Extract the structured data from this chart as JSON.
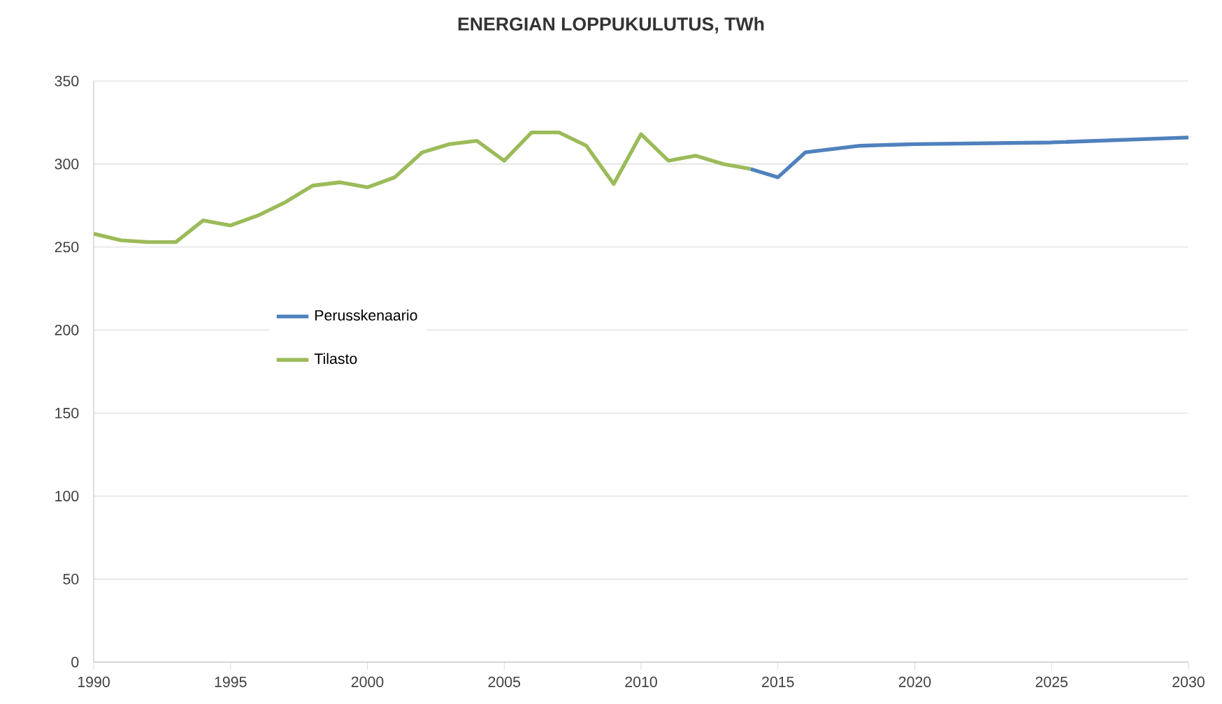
{
  "chart_data": {
    "type": "line",
    "title": "ENERGIAN LOPPUKULUTUS, TWh",
    "series": [
      {
        "name": "Perusskenaario",
        "color": "#4f81bd",
        "x": [
          2014,
          2015,
          2016,
          2018,
          2020,
          2025,
          2030
        ],
        "values": [
          297,
          292,
          307,
          311,
          312,
          313,
          316
        ]
      },
      {
        "name": "Tilasto",
        "color": "#9bbb59",
        "x": [
          1990,
          1991,
          1992,
          1993,
          1994,
          1995,
          1996,
          1997,
          1998,
          1999,
          2000,
          2001,
          2002,
          2003,
          2004,
          2005,
          2006,
          2007,
          2008,
          2009,
          2010,
          2011,
          2012,
          2013,
          2014
        ],
        "values": [
          258,
          254,
          253,
          253,
          266,
          263,
          269,
          277,
          287,
          289,
          286,
          292,
          307,
          312,
          314,
          302,
          319,
          319,
          311,
          288,
          318,
          302,
          305,
          300,
          297
        ]
      }
    ],
    "xlim": [
      1990,
      2030
    ],
    "xticks": [
      1990,
      1995,
      2000,
      2005,
      2010,
      2015,
      2020,
      2025,
      2030
    ],
    "ylim": [
      0,
      350
    ],
    "yticks": [
      0,
      50,
      100,
      150,
      200,
      250,
      300,
      350
    ],
    "grid": "y",
    "legend": "left",
    "marker": "none",
    "line_style": "solid"
  }
}
